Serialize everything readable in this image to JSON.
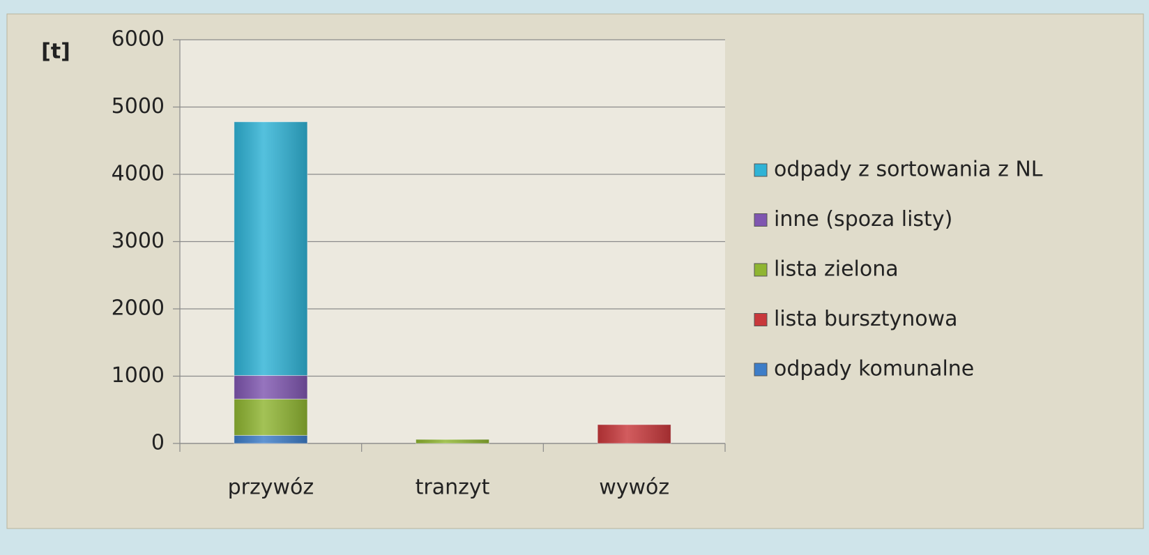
{
  "chart_data": {
    "type": "stacked_bar",
    "y_label": "[t]",
    "categories": [
      "przywóz",
      "tranzyt",
      "wywóz"
    ],
    "series": [
      {
        "name": "odpady komunalne",
        "color": "#3d7dc8",
        "values": [
          120,
          0,
          0
        ]
      },
      {
        "name": "lista bursztynowa",
        "color": "#c8383b",
        "values": [
          0,
          0,
          280
        ]
      },
      {
        "name": "lista zielona",
        "color": "#8fb531",
        "values": [
          540,
          60,
          0
        ]
      },
      {
        "name": "inne (spoza listy)",
        "color": "#7f56b0",
        "values": [
          350,
          0,
          0
        ]
      },
      {
        "name": "odpady z sortowania z NL",
        "color": "#2fb3d6",
        "values": [
          3770,
          0,
          0
        ]
      }
    ],
    "ylim": [
      0,
      6000
    ],
    "yticks": [
      0,
      1000,
      2000,
      3000,
      4000,
      5000,
      6000
    ],
    "grid": true
  }
}
